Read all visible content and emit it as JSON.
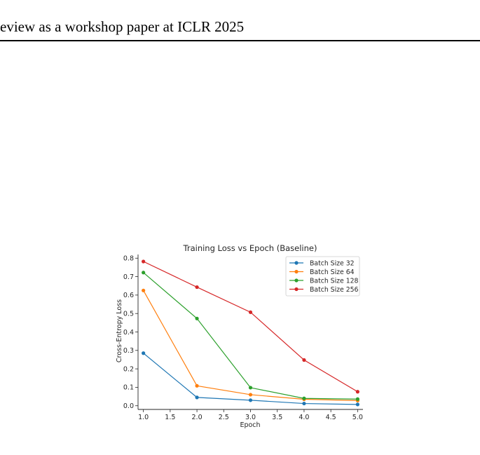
{
  "header": {
    "text": "eview as a workshop paper at ICLR 2025"
  },
  "chart_data": {
    "type": "line",
    "title": "Training Loss vs Epoch (Baseline)",
    "xlabel": "Epoch",
    "ylabel": "Cross-Entropy Loss",
    "xlim": [
      0.9,
      5.1
    ],
    "ylim": [
      -0.02,
      0.82
    ],
    "xticks": [
      "1.0",
      "1.5",
      "2.0",
      "2.5",
      "3.0",
      "3.5",
      "4.0",
      "4.5",
      "5.0"
    ],
    "yticks": [
      "0.0",
      "0.1",
      "0.2",
      "0.3",
      "0.4",
      "0.5",
      "0.6",
      "0.7",
      "0.8"
    ],
    "grid": false,
    "legend_position": "top-right",
    "x": [
      1,
      2,
      3,
      4,
      5
    ],
    "series": [
      {
        "name": "Batch Size 32",
        "color": "#1f77b4",
        "values": [
          0.285,
          0.045,
          0.03,
          0.012,
          0.007
        ]
      },
      {
        "name": "Batch Size 64",
        "color": "#ff7f0e",
        "values": [
          0.625,
          0.108,
          0.06,
          0.035,
          0.028
        ]
      },
      {
        "name": "Batch Size 128",
        "color": "#2ca02c",
        "values": [
          0.722,
          0.473,
          0.098,
          0.04,
          0.036
        ]
      },
      {
        "name": "Batch Size 256",
        "color": "#d62728",
        "values": [
          0.782,
          0.643,
          0.507,
          0.248,
          0.076
        ]
      }
    ]
  }
}
